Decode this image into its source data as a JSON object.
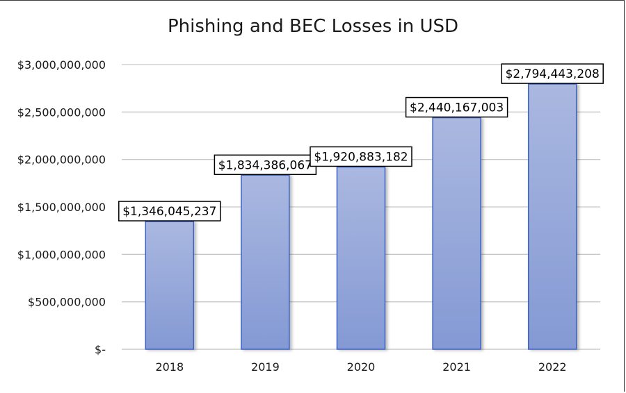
{
  "chart_data": {
    "type": "bar",
    "title": "Phishing and BEC Losses in USD",
    "xlabel": "",
    "ylabel": "",
    "categories": [
      "2018",
      "2019",
      "2020",
      "2021",
      "2022"
    ],
    "values": [
      1346045237,
      1834386067,
      1920883182,
      2440167003,
      2794443208
    ],
    "value_labels": [
      "$1,346,045,237",
      "$1,834,386,067",
      "$1,920,883,182",
      "$2,440,167,003",
      "$2,794,443,208"
    ],
    "ylim": [
      0,
      3000000000
    ],
    "yticks": [
      0,
      500000000,
      1000000000,
      1500000000,
      2000000000,
      2500000000,
      3000000000
    ],
    "ytick_labels": [
      "$-",
      "$500,000,000",
      "$1,000,000,000",
      "$1,500,000,000",
      "$2,000,000,000",
      "$2,500,000,000",
      "$3,000,000,000"
    ],
    "grid": true,
    "legend": "none",
    "colors": {
      "bar_top": "#aab8e0",
      "bar_bottom": "#8499d4",
      "bar_edge": "#3d63c4",
      "grid": "#c8c8c8",
      "axis": "#bfbfbf",
      "text": "#1a1a1a"
    }
  }
}
